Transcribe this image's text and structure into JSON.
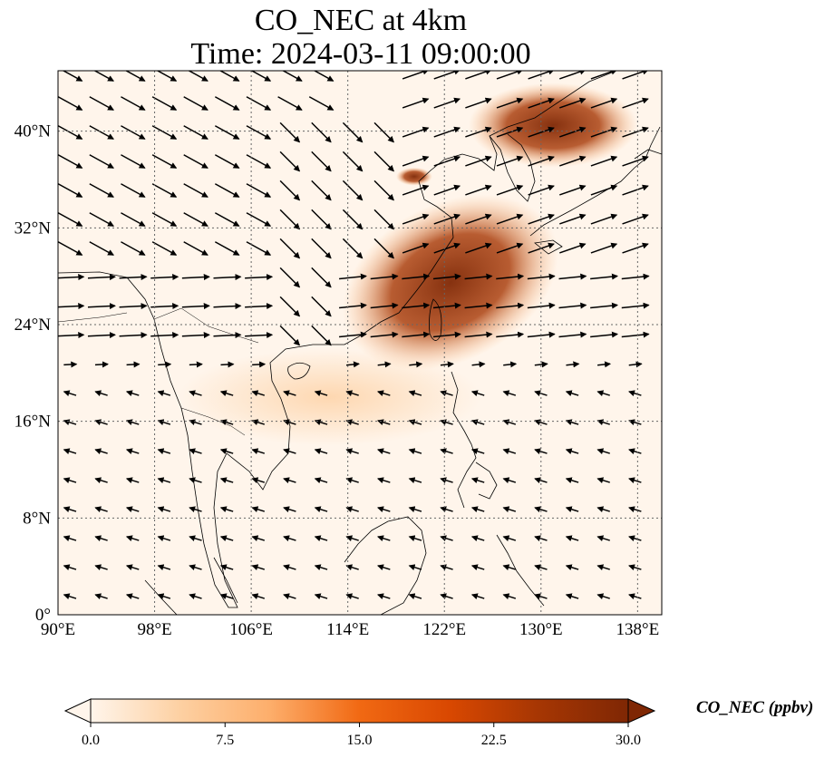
{
  "title_line1": "CO_NEC at 4km",
  "title_line2": "Time: 2024-03-11 09:00:00",
  "map": {
    "extent": {
      "lon_min": 90,
      "lon_max": 140,
      "lat_min": 0,
      "lat_max": 45
    },
    "lon_ticks": [
      {
        "value": 90,
        "label": "90°E"
      },
      {
        "value": 98,
        "label": "98°E"
      },
      {
        "value": 106,
        "label": "106°E"
      },
      {
        "value": 114,
        "label": "114°E"
      },
      {
        "value": 122,
        "label": "122°E"
      },
      {
        "value": 130,
        "label": "130°E"
      },
      {
        "value": 138,
        "label": "138°E"
      }
    ],
    "lat_ticks": [
      {
        "value": 0,
        "label": "0°"
      },
      {
        "value": 8,
        "label": "8°N"
      },
      {
        "value": 16,
        "label": "16°N"
      },
      {
        "value": 24,
        "label": "24°N"
      },
      {
        "value": 32,
        "label": "32°N"
      },
      {
        "value": 40,
        "label": "40°N"
      }
    ],
    "gridlines": true,
    "background_color": "#fff5eb",
    "coastline_color": "#000000",
    "wind_vectors": true,
    "wind_regions": [
      {
        "lon": [
          90,
          114
        ],
        "lat": [
          25,
          45
        ],
        "u": 1.0,
        "v": -0.55
      },
      {
        "lon": [
          90,
          108
        ],
        "lat": [
          20,
          30
        ],
        "u": 1.0,
        "v": 0.05
      },
      {
        "lon": [
          108,
          125
        ],
        "lat": [
          22,
          40
        ],
        "u": 0.75,
        "v": -0.75
      },
      {
        "lon": [
          118,
          140
        ],
        "lat": [
          28,
          45
        ],
        "u": 1.0,
        "v": 0.35
      },
      {
        "lon": [
          114,
          138
        ],
        "lat": [
          16,
          28
        ],
        "u": 1.0,
        "v": 0.1
      },
      {
        "lon": [
          90,
          140
        ],
        "lat": [
          0,
          20
        ],
        "u": -0.8,
        "v": 0.25
      }
    ]
  },
  "plumes": [
    {
      "name": "northeast-china-korea",
      "intensity": "high",
      "lon": [
        124,
        138
      ],
      "lat": [
        37,
        44
      ]
    },
    {
      "name": "east-china-sea-band",
      "intensity": "high",
      "lon": [
        113,
        132
      ],
      "lat": [
        21,
        34
      ]
    },
    {
      "name": "yellow-sea-spot",
      "intensity": "high",
      "lon": [
        118,
        121
      ],
      "lat": [
        35.5,
        37
      ]
    },
    {
      "name": "south-china-sea-haze",
      "intensity": "low",
      "lon": [
        100,
        125
      ],
      "lat": [
        14,
        22
      ]
    }
  ],
  "colorbar": {
    "label": "CO_NEC (ppbv)",
    "min": 0.0,
    "max": 30.0,
    "ticks": [
      "0.0",
      "7.5",
      "15.0",
      "22.5",
      "30.0"
    ],
    "colormap": "OrRd",
    "colors": [
      "#fff5eb",
      "#fdd0a2",
      "#fdae6b",
      "#f16913",
      "#d94801",
      "#a63603",
      "#7f2704"
    ]
  }
}
